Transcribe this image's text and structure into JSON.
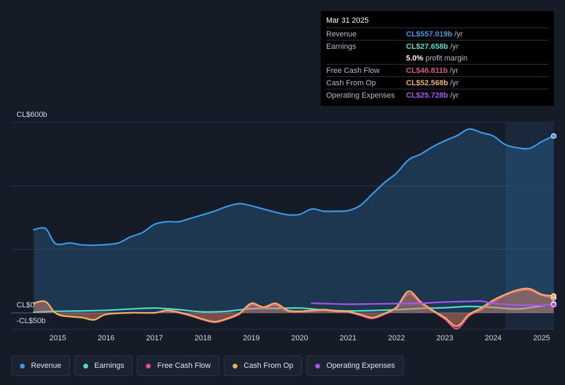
{
  "tooltip": {
    "date": "Mar 31 2025",
    "rows": [
      {
        "label": "Revenue",
        "value": "CL$557.019b",
        "unit": "/yr",
        "color": "#3b9ae8"
      },
      {
        "label": "Earnings",
        "value": "CL$27.658b",
        "unit": "/yr",
        "color": "#4fe0c8"
      },
      {
        "label": "",
        "value": "5.0%",
        "unit": "profit margin",
        "color": "#ffffff"
      },
      {
        "label": "Free Cash Flow",
        "value": "CL$46.811b",
        "unit": "/yr",
        "color": "#e0508a"
      },
      {
        "label": "Cash From Op",
        "value": "CL$52.568b",
        "unit": "/yr",
        "color": "#f0b060"
      },
      {
        "label": "Operating Expenses",
        "value": "CL$25.728b",
        "unit": "/yr",
        "color": "#a855f0"
      }
    ]
  },
  "legend": [
    {
      "label": "Revenue",
      "color": "#3b9ae8"
    },
    {
      "label": "Earnings",
      "color": "#4fe0c8"
    },
    {
      "label": "Free Cash Flow",
      "color": "#e0508a"
    },
    {
      "label": "Cash From Op",
      "color": "#f0b060"
    },
    {
      "label": "Operating Expenses",
      "color": "#a855f0"
    }
  ],
  "chart_data": {
    "type": "line",
    "title": "",
    "xlabel": "",
    "ylabel": "",
    "ylim": [
      -50,
      600
    ],
    "xlim": [
      2014.5,
      2025.25
    ],
    "y_tick_labels": [
      {
        "value": 600,
        "label": "CL$600b"
      },
      {
        "value": 0,
        "label": "CL$0"
      },
      {
        "value": -50,
        "label": "-CL$50b"
      }
    ],
    "x_tick_labels": [
      "2015",
      "2016",
      "2017",
      "2018",
      "2019",
      "2020",
      "2021",
      "2022",
      "2023",
      "2024",
      "2025"
    ],
    "x_ticks": [
      2015,
      2016,
      2017,
      2018,
      2019,
      2020,
      2021,
      2022,
      2023,
      2024,
      2025
    ],
    "forecast_start": 2024.25,
    "series": [
      {
        "name": "Revenue",
        "color": "#3b9ae8",
        "fill": true,
        "x": [
          2014.5,
          2014.75,
          2014.95,
          2015.25,
          2015.5,
          2015.75,
          2016.0,
          2016.25,
          2016.5,
          2016.75,
          2017.0,
          2017.25,
          2017.5,
          2017.75,
          2018.0,
          2018.25,
          2018.5,
          2018.75,
          2019.0,
          2019.25,
          2019.5,
          2019.75,
          2020.0,
          2020.25,
          2020.5,
          2020.75,
          2021.0,
          2021.25,
          2021.5,
          2021.75,
          2022.0,
          2022.25,
          2022.5,
          2022.75,
          2023.0,
          2023.25,
          2023.5,
          2023.75,
          2024.0,
          2024.25,
          2024.5,
          2024.75,
          2025.0,
          2025.25
        ],
        "values": [
          262,
          265,
          218,
          220,
          214,
          213,
          215,
          220,
          239,
          253,
          279,
          287,
          287,
          298,
          309,
          321,
          335,
          344,
          337,
          327,
          317,
          309,
          310,
          327,
          320,
          320,
          322,
          338,
          374,
          410,
          440,
          482,
          500,
          523,
          542,
          558,
          579,
          568,
          557,
          530,
          520,
          518,
          539,
          557
        ]
      },
      {
        "name": "Earnings",
        "color": "#4fe0c8",
        "fill": false,
        "x": [
          2014.5,
          2015.0,
          2015.5,
          2016.0,
          2016.5,
          2017.0,
          2017.5,
          2018.0,
          2018.5,
          2019.0,
          2019.5,
          2020.0,
          2020.5,
          2021.0,
          2021.5,
          2022.0,
          2022.5,
          2023.0,
          2023.5,
          2024.0,
          2024.5,
          2025.0,
          2025.25
        ],
        "values": [
          2,
          5,
          6,
          8,
          12,
          15,
          10,
          3,
          5,
          13,
          14,
          15,
          9,
          6,
          7,
          10,
          14,
          16,
          20,
          17,
          12,
          22,
          28
        ]
      },
      {
        "name": "Free Cash Flow",
        "color": "#e0508a",
        "fill": true,
        "x": [
          2014.5,
          2014.75,
          2015.0,
          2015.5,
          2015.75,
          2016.0,
          2016.5,
          2017.0,
          2017.25,
          2017.5,
          2017.75,
          2018.0,
          2018.25,
          2018.5,
          2018.75,
          2019.0,
          2019.25,
          2019.5,
          2019.75,
          2020.0,
          2020.25,
          2020.5,
          2020.75,
          2021.0,
          2021.25,
          2021.5,
          2021.75,
          2022.0,
          2022.25,
          2022.5,
          2022.75,
          2023.0,
          2023.25,
          2023.5,
          2023.75,
          2024.0,
          2024.25,
          2024.5,
          2024.75,
          2025.0,
          2025.25
        ],
        "values": [
          30,
          35,
          -5,
          -15,
          -22,
          -5,
          0,
          0,
          6,
          0,
          -10,
          -22,
          -30,
          -20,
          -5,
          25,
          15,
          25,
          5,
          3,
          5,
          8,
          4,
          2,
          -8,
          -18,
          -5,
          15,
          60,
          30,
          5,
          -20,
          -50,
          -10,
          10,
          35,
          55,
          68,
          72,
          55,
          47
        ]
      },
      {
        "name": "Cash From Op",
        "color": "#f0b060",
        "fill": true,
        "x": [
          2014.5,
          2014.75,
          2015.0,
          2015.5,
          2015.75,
          2016.0,
          2016.5,
          2017.0,
          2017.25,
          2017.5,
          2017.75,
          2018.0,
          2018.25,
          2018.5,
          2018.75,
          2019.0,
          2019.25,
          2019.5,
          2019.75,
          2020.0,
          2020.25,
          2020.5,
          2020.75,
          2021.0,
          2021.25,
          2021.5,
          2021.75,
          2022.0,
          2022.25,
          2022.5,
          2022.75,
          2023.0,
          2023.25,
          2023.5,
          2023.75,
          2024.0,
          2024.25,
          2024.5,
          2024.75,
          2025.0,
          2025.25
        ],
        "values": [
          30,
          35,
          -5,
          -15,
          -22,
          -5,
          0,
          0,
          8,
          2,
          -8,
          -20,
          -28,
          -18,
          -2,
          30,
          18,
          30,
          8,
          5,
          8,
          10,
          6,
          4,
          -5,
          -15,
          -2,
          18,
          68,
          35,
          8,
          -15,
          -42,
          -5,
          15,
          40,
          58,
          72,
          76,
          58,
          53
        ]
      },
      {
        "name": "Operating Expenses",
        "color": "#a855f0",
        "fill": false,
        "x": [
          2020.25,
          2020.75,
          2021.0,
          2021.5,
          2022.0,
          2022.5,
          2023.0,
          2023.5,
          2023.75,
          2024.0,
          2024.5,
          2025.0,
          2025.25
        ],
        "values": [
          30,
          28,
          27,
          28,
          29,
          30,
          34,
          36,
          37,
          30,
          25,
          24,
          26
        ]
      }
    ]
  }
}
